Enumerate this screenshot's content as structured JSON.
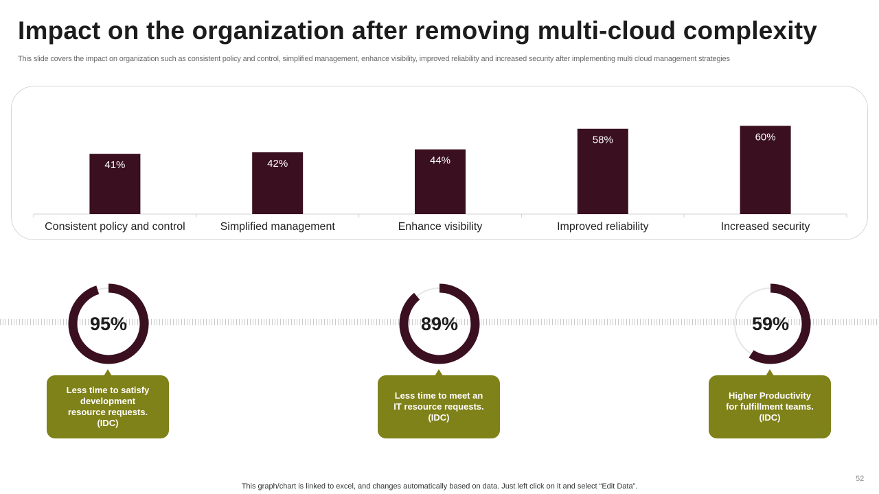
{
  "title": "Impact on the organization after removing multi-cloud complexity",
  "subtitle": "This slide covers the impact on organization such as consistent policy and control, simplified management, enhance visibility, improved reliability and increased security after implementing multi cloud management strategies",
  "colors": {
    "bar": "#3a0f1f",
    "callout": "#7f8119",
    "donut_track": "#e6e6e6"
  },
  "chart_data": {
    "type": "bar",
    "categories": [
      "Consistent policy and control",
      "Simplified management",
      "Enhance visibility",
      "Improved reliability",
      "Increased security"
    ],
    "values": [
      41,
      42,
      44,
      58,
      60
    ],
    "value_labels": [
      "41%",
      "42%",
      "44%",
      "58%",
      "60%"
    ],
    "ylim": [
      0,
      70
    ],
    "grid": false,
    "legend": "none"
  },
  "kpis": [
    {
      "value": 95,
      "label": "95%",
      "text": "Less time to satisfy development resource requests. (IDC)"
    },
    {
      "value": 89,
      "label": "89%",
      "text": "Less time to meet an IT resource requests. (IDC)"
    },
    {
      "value": 59,
      "label": "59%",
      "text": "Higher Productivity for fulfillment teams. (IDC)"
    }
  ],
  "footer": "This graph/chart is linked to excel, and changes automatically based on data. Just left click on it and select “Edit Data”.",
  "page_number": "52"
}
